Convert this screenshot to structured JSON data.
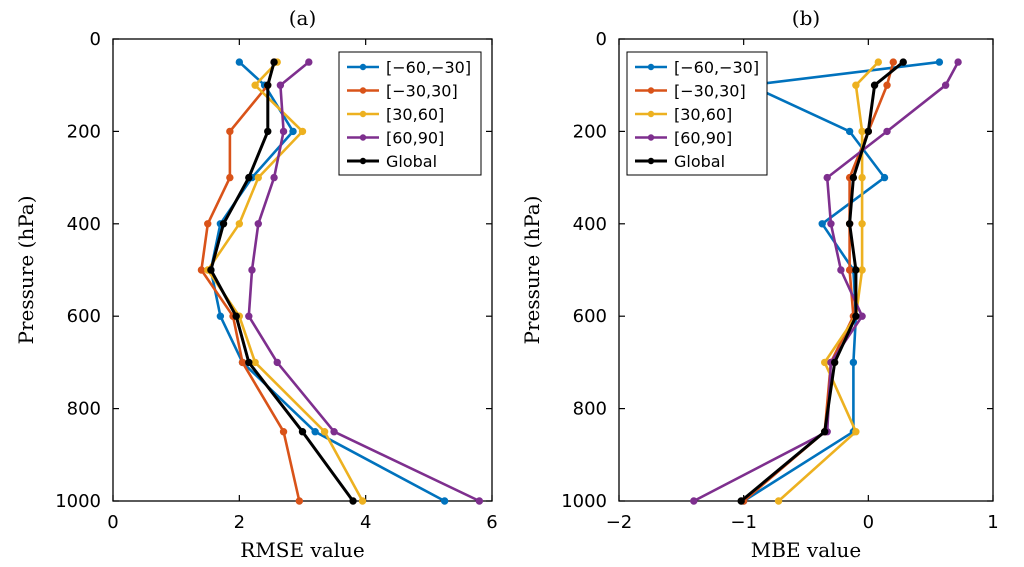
{
  "chart_data": [
    {
      "type": "line",
      "title": "(a)",
      "xlabel": "RMSE value",
      "ylabel": "Pressure (hPa)",
      "xlim": [
        0,
        6
      ],
      "ylim": [
        0,
        1000
      ],
      "y_reversed": true,
      "xticks": [
        0,
        2,
        4,
        6
      ],
      "yticks": [
        0,
        200,
        400,
        600,
        800,
        1000
      ],
      "grid": false,
      "legend_position": "top-right",
      "y": [
        50,
        100,
        200,
        300,
        400,
        500,
        600,
        700,
        850,
        1000
      ],
      "series": [
        {
          "name": "[−60,−30]",
          "color": "#0072BD",
          "x": [
            2.0,
            2.4,
            2.85,
            2.2,
            1.7,
            1.55,
            1.7,
            2.05,
            3.2,
            5.25
          ]
        },
        {
          "name": "[−30,30]",
          "color": "#D95319",
          "x": [
            2.55,
            2.45,
            1.85,
            1.85,
            1.5,
            1.4,
            1.9,
            2.05,
            2.7,
            2.95
          ]
        },
        {
          "name": "[30,60]",
          "color": "#EDB120",
          "x": [
            2.6,
            2.25,
            3.0,
            2.3,
            2.0,
            1.5,
            2.0,
            2.25,
            3.35,
            3.95
          ]
        },
        {
          "name": "[60,90]",
          "color": "#7E2F8E",
          "x": [
            3.1,
            2.65,
            2.7,
            2.55,
            2.3,
            2.2,
            2.15,
            2.6,
            3.5,
            5.8
          ]
        },
        {
          "name": "Global",
          "color": "#000000",
          "x": [
            2.55,
            2.45,
            2.45,
            2.15,
            1.75,
            1.55,
            1.95,
            2.15,
            3.0,
            3.8
          ]
        }
      ]
    },
    {
      "type": "line",
      "title": "(b)",
      "xlabel": "MBE value",
      "ylabel": "Pressure (hPa)",
      "xlim": [
        -2,
        1
      ],
      "ylim": [
        0,
        1000
      ],
      "y_reversed": true,
      "xticks": [
        -2,
        -1,
        0,
        1
      ],
      "yticks": [
        0,
        200,
        400,
        600,
        800,
        1000
      ],
      "grid": false,
      "legend_position": "top-left",
      "y": [
        50,
        100,
        200,
        300,
        400,
        500,
        600,
        700,
        850,
        1000
      ],
      "series": [
        {
          "name": "[−60,−30]",
          "color": "#0072BD",
          "x": [
            0.57,
            -0.95,
            -0.15,
            0.13,
            -0.37,
            -0.12,
            -0.1,
            -0.12,
            -0.12,
            -1.0
          ]
        },
        {
          "name": "[−30,30]",
          "color": "#D95319",
          "x": [
            0.2,
            0.15,
            0.0,
            -0.15,
            -0.15,
            -0.15,
            -0.12,
            -0.3,
            -0.35,
            -1.0
          ]
        },
        {
          "name": "[30,60]",
          "color": "#EDB120",
          "x": [
            0.08,
            -0.1,
            -0.05,
            -0.05,
            -0.05,
            -0.05,
            -0.1,
            -0.35,
            -0.1,
            -0.72
          ]
        },
        {
          "name": "[60,90]",
          "color": "#7E2F8E",
          "x": [
            0.72,
            0.62,
            0.15,
            -0.33,
            -0.3,
            -0.22,
            -0.05,
            -0.3,
            -0.33,
            -1.4
          ]
        },
        {
          "name": "Global",
          "color": "#000000",
          "x": [
            0.28,
            0.05,
            0.0,
            -0.12,
            -0.15,
            -0.1,
            -0.1,
            -0.27,
            -0.35,
            -1.02
          ]
        }
      ]
    }
  ]
}
